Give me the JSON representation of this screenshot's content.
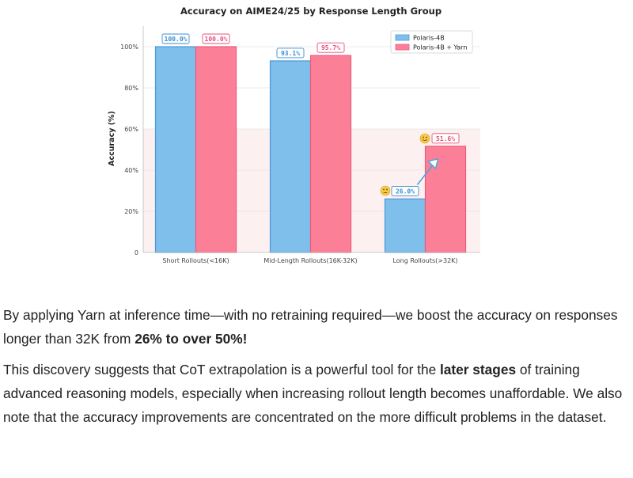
{
  "chart_data": {
    "type": "bar",
    "title": "Accuracy on AIME24/25 by Response Length Group",
    "xlabel": "",
    "ylabel": "Accuracy (%)",
    "ylim": [
      0,
      110
    ],
    "yticks": [
      "0",
      "20%",
      "40%",
      "60%",
      "80%",
      "100%"
    ],
    "ytick_values": [
      0,
      20,
      40,
      60,
      80,
      100
    ],
    "grid": true,
    "highlight_band": [
      0,
      60
    ],
    "legend_position": "top-right",
    "categories": [
      "Short Rollouts(<16K)",
      "Mid-Length Rollouts(16K-32K)",
      "Long Rollouts(>32K)"
    ],
    "series": [
      {
        "name": "Polaris-4B",
        "values": [
          100.0,
          93.1,
          26.0
        ],
        "labels": [
          "100.0%",
          "93.1%",
          "26.0%"
        ],
        "color": "#7fbfec",
        "edge": "#4a98d6",
        "label_color": "#3a8ed0"
      },
      {
        "name": "Polaris-4B + Yarn",
        "values": [
          100.0,
          95.7,
          51.6
        ],
        "labels": [
          "100.0%",
          "95.7%",
          "51.6%"
        ],
        "color": "#fb8097",
        "edge": "#ec5a7a",
        "label_color": "#e8517a"
      }
    ],
    "annotations": {
      "arrow": {
        "from_category": 2,
        "from_value": 26.0,
        "to_value": 51.6,
        "color": "#4aa6dc"
      },
      "emoji_low": "neutral-face-icon",
      "emoji_high": "smiling-face-icon"
    }
  },
  "paragraphs": [
    {
      "before": "By applying Yarn at inference time—with no retraining required—we boost the accuracy on responses longer than 32K from ",
      "bold": "26% to over 50%!",
      "after": ""
    },
    {
      "before": "This discovery suggests that CoT extrapolation is a powerful tool for the ",
      "bold": "later stages",
      "after": " of training advanced reasoning models, especially when increasing rollout length becomes unaffordable. We also note that the accuracy improvements are concentrated on the more difficult problems in the dataset."
    }
  ]
}
